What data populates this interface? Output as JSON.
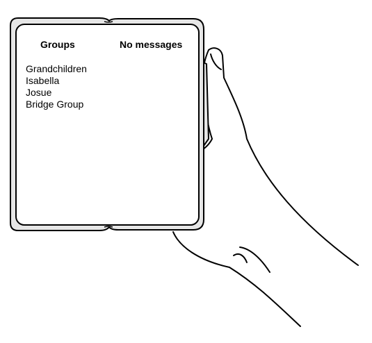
{
  "left_pane": {
    "title": "Groups",
    "items": [
      {
        "label": "Grandchildren"
      },
      {
        "label": "Isabella"
      },
      {
        "label": "Josue"
      },
      {
        "label": "Bridge Group"
      }
    ]
  },
  "right_pane": {
    "title": "No messages"
  },
  "colors": {
    "outline": "#000000",
    "device_frame": "#e6e6e6",
    "screen": "#ffffff"
  }
}
